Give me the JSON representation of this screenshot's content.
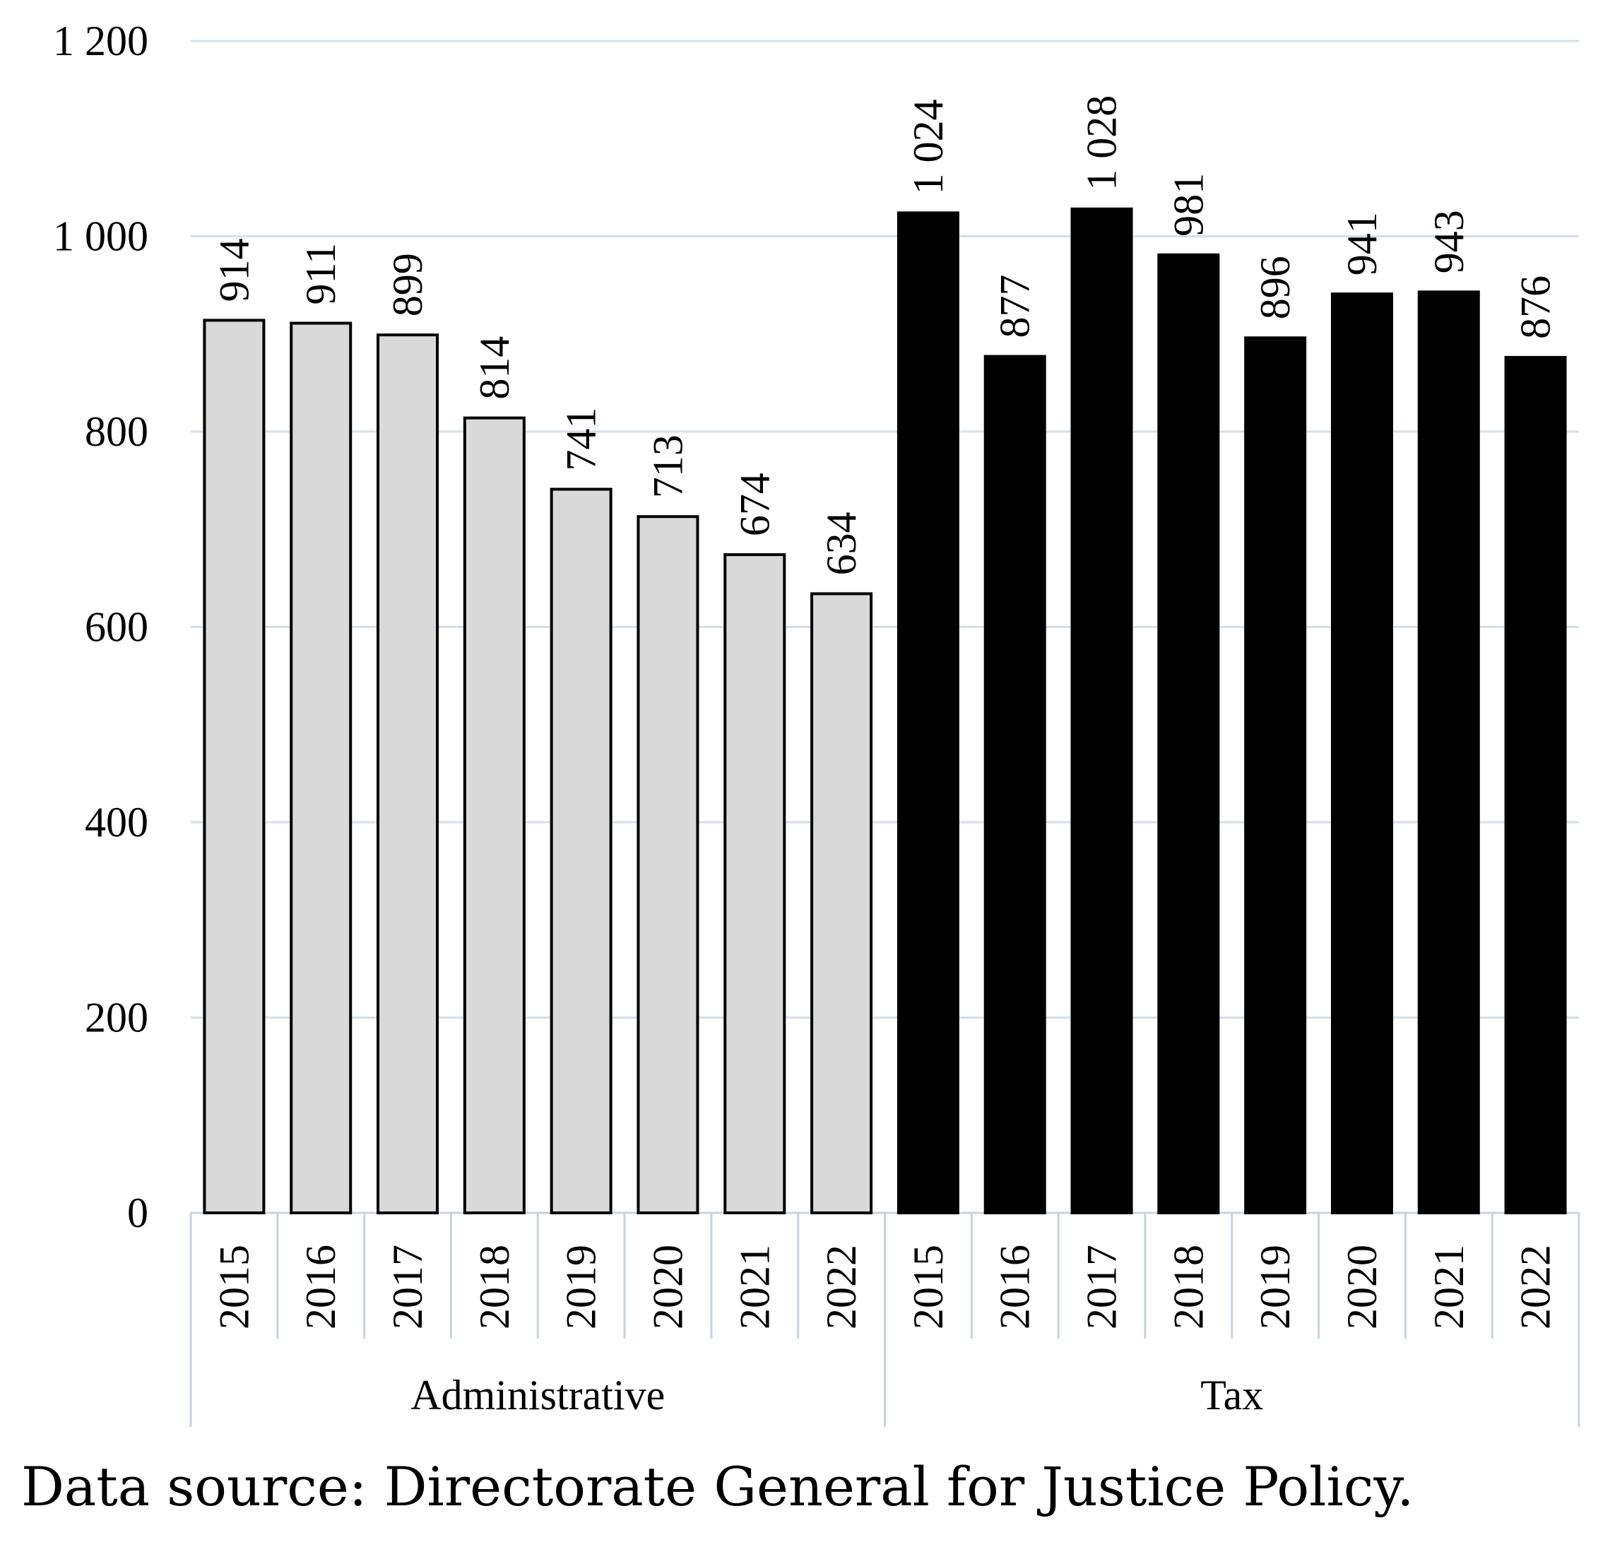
{
  "chart_data": {
    "type": "bar",
    "ylim": [
      0,
      1200
    ],
    "yticks": [
      0,
      200,
      400,
      600,
      800,
      1000,
      1200
    ],
    "ytick_labels": [
      "0",
      "200",
      "400",
      "600",
      "800",
      "1 000",
      "1 200"
    ],
    "grid": true,
    "groups": [
      {
        "name": "Administrative",
        "fill": "#d9d9d9",
        "categories": [
          "2015",
          "2016",
          "2017",
          "2018",
          "2019",
          "2020",
          "2021",
          "2022"
        ],
        "values": [
          914,
          911,
          899,
          814,
          741,
          713,
          674,
          634
        ],
        "value_labels": [
          "914",
          "911",
          "899",
          "814",
          "741",
          "713",
          "674",
          "634"
        ]
      },
      {
        "name": "Tax",
        "fill": "#000000",
        "categories": [
          "2015",
          "2016",
          "2017",
          "2018",
          "2019",
          "2020",
          "2021",
          "2022"
        ],
        "values": [
          1024,
          877,
          1028,
          981,
          896,
          941,
          943,
          876
        ],
        "value_labels": [
          "1 024",
          "877",
          "1 028",
          "981",
          "896",
          "941",
          "943",
          "876"
        ]
      }
    ]
  },
  "source_note": "Data source: Directorate General for Justice Policy."
}
